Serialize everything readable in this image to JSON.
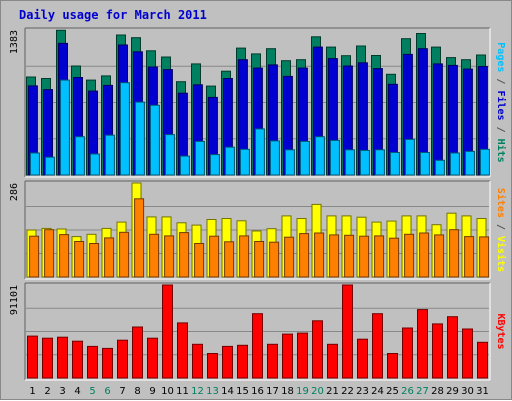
{
  "title": "Daily usage for March 2011",
  "chart_data": [
    {
      "type": "bar",
      "name": "panel-hits-files-pages",
      "ymax_label": "1383",
      "ylim": [
        0,
        1383
      ],
      "side_label": [
        {
          "text": "Pages",
          "color": "#00c0ff"
        },
        {
          "text": " / ",
          "color": "#555555"
        },
        {
          "text": "Files",
          "color": "#0000d0"
        },
        {
          "text": " / ",
          "color": "#555555"
        },
        {
          "text": "Hits",
          "color": "#008060"
        }
      ],
      "categories": [
        "1",
        "2",
        "3",
        "4",
        "5",
        "6",
        "7",
        "8",
        "9",
        "10",
        "11",
        "12",
        "13",
        "14",
        "15",
        "16",
        "17",
        "18",
        "19",
        "20",
        "21",
        "22",
        "23",
        "24",
        "25",
        "26",
        "27",
        "28",
        "29",
        "30",
        "31"
      ],
      "series": [
        {
          "name": "Hits",
          "color": "#008060",
          "values": [
            935,
            920,
            1380,
            1040,
            905,
            945,
            1335,
            1310,
            1185,
            1125,
            890,
            1060,
            848,
            990,
            1210,
            1155,
            1205,
            1090,
            1100,
            1318,
            1220,
            1138,
            1230,
            1140,
            960,
            1300,
            1350,
            1220,
            1120,
            1100,
            1145
          ]
        },
        {
          "name": "Files",
          "color": "#0000d0",
          "values": [
            850,
            815,
            1255,
            930,
            800,
            855,
            1240,
            1175,
            1030,
            1005,
            780,
            860,
            740,
            920,
            1100,
            1020,
            1050,
            940,
            1020,
            1220,
            1110,
            1040,
            1070,
            1015,
            865,
            1150,
            1205,
            1060,
            1045,
            1010,
            1035
          ]
        },
        {
          "name": "Pages",
          "color": "#00c0ff",
          "values": [
            210,
            170,
            905,
            365,
            200,
            380,
            880,
            695,
            665,
            385,
            180,
            320,
            195,
            265,
            245,
            440,
            325,
            240,
            320,
            365,
            330,
            240,
            235,
            240,
            215,
            340,
            215,
            140,
            210,
            225,
            245
          ]
        }
      ]
    },
    {
      "type": "bar",
      "name": "panel-visits-sites",
      "ymax_label": "286",
      "ylim": [
        0,
        286
      ],
      "side_label": [
        {
          "text": "Sites",
          "color": "#ff8000"
        },
        {
          "text": " / ",
          "color": "#555555"
        },
        {
          "text": "Visits",
          "color": "#ffff00"
        }
      ],
      "categories": [
        "1",
        "2",
        "3",
        "4",
        "5",
        "6",
        "7",
        "8",
        "9",
        "10",
        "11",
        "12",
        "13",
        "14",
        "15",
        "16",
        "17",
        "18",
        "19",
        "20",
        "21",
        "22",
        "23",
        "24",
        "25",
        "26",
        "27",
        "28",
        "29",
        "30",
        "31"
      ],
      "series": [
        {
          "name": "Visits",
          "color": "#ffff00",
          "values": [
            143,
            148,
            146,
            123,
            130,
            148,
            167,
            286,
            183,
            183,
            165,
            158,
            175,
            178,
            171,
            140,
            147,
            186,
            178,
            221,
            186,
            186,
            182,
            167,
            170,
            186,
            186,
            159,
            194,
            186,
            178
          ]
        },
        {
          "name": "Sites",
          "color": "#ff8000",
          "values": [
            124,
            144,
            129,
            108,
            102,
            119,
            136,
            238,
            130,
            125,
            135,
            102,
            124,
            107,
            125,
            108,
            106,
            121,
            132,
            134,
            128,
            127,
            124,
            125,
            118,
            130,
            134,
            128,
            144,
            123,
            122
          ]
        }
      ]
    },
    {
      "type": "bar",
      "name": "panel-kbytes",
      "ymax_label": "91101",
      "ylim": [
        0,
        91101
      ],
      "side_label": [
        {
          "text": "KBytes",
          "color": "#ff0000"
        }
      ],
      "categories": [
        "1",
        "2",
        "3",
        "4",
        "5",
        "6",
        "7",
        "8",
        "9",
        "10",
        "11",
        "12",
        "13",
        "14",
        "15",
        "16",
        "17",
        "18",
        "19",
        "20",
        "21",
        "22",
        "23",
        "24",
        "25",
        "26",
        "27",
        "28",
        "29",
        "30",
        "31"
      ],
      "series": [
        {
          "name": "KBytes",
          "color": "#ff0000",
          "values": [
            41000,
            39000,
            40000,
            36000,
            31000,
            29000,
            37000,
            50000,
            39000,
            91101,
            54000,
            33000,
            24000,
            31000,
            32000,
            63000,
            33000,
            43000,
            44000,
            56000,
            33000,
            91101,
            38000,
            63000,
            24000,
            49000,
            67000,
            53000,
            60000,
            48000,
            35000
          ]
        }
      ]
    }
  ],
  "x_axis": {
    "labels": [
      "1",
      "2",
      "3",
      "4",
      "5",
      "6",
      "7",
      "8",
      "9",
      "10",
      "11",
      "12",
      "13",
      "14",
      "15",
      "16",
      "17",
      "18",
      "19",
      "20",
      "21",
      "22",
      "23",
      "24",
      "25",
      "26",
      "27",
      "28",
      "29",
      "30",
      "31"
    ],
    "weekend_color": "#008060",
    "weekday_color": "#000000",
    "weekend_days": [
      "5",
      "6",
      "12",
      "13",
      "19",
      "20",
      "26",
      "27"
    ]
  }
}
